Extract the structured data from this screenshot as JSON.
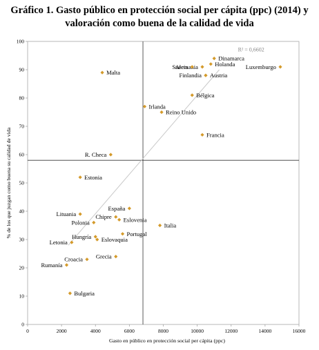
{
  "title_lines": [
    "Gráfico 1. Gasto público en protección social per cápita (ppc) (2014) y",
    "valoración como buena de la calidad de vida"
  ],
  "chart_data": {
    "type": "scatter",
    "xlabel": "Gasto en público en protección social per cápita (ppc)",
    "ylabel": "% de los que juzgan como buena su calidad de vida",
    "xlim": [
      0,
      16000
    ],
    "ylim": [
      0,
      100
    ],
    "xticks": [
      0,
      2000,
      4000,
      6000,
      8000,
      10000,
      12000,
      14000,
      16000
    ],
    "yticks": [
      0,
      10,
      20,
      30,
      40,
      50,
      60,
      70,
      80,
      90,
      100
    ],
    "grid": false,
    "marker_color": "#d49a2a",
    "trend_color": "#c8c8c8",
    "reference_x": 6800,
    "reference_y": 58,
    "trendline": {
      "x": [
        2400,
        11300
      ],
      "y": [
        28,
        90
      ],
      "r2_label": "R² = 0,6602"
    },
    "points": [
      {
        "name": "Alemania",
        "x": 10300,
        "y": 91,
        "label_side": "left"
      },
      {
        "name": "Dinamarca",
        "x": 11000,
        "y": 94,
        "label_side": "right"
      },
      {
        "name": "Suecia",
        "x": 9700,
        "y": 91,
        "label_side": "left"
      },
      {
        "name": "Holanda",
        "x": 10800,
        "y": 92,
        "label_side": "right"
      },
      {
        "name": "Luxemburgo",
        "x": 14900,
        "y": 91,
        "label_side": "left"
      },
      {
        "name": "Finlandia",
        "x": 10500,
        "y": 88,
        "label_side": "left"
      },
      {
        "name": "Austria",
        "x": 10500,
        "y": 88,
        "label_side": "right"
      },
      {
        "name": "Malta",
        "x": 4400,
        "y": 89,
        "label_side": "right"
      },
      {
        "name": "Bélgica",
        "x": 9700,
        "y": 81,
        "label_side": "right"
      },
      {
        "name": "Irlanda",
        "x": 6900,
        "y": 77,
        "label_side": "right"
      },
      {
        "name": "Reino Unido",
        "x": 7900,
        "y": 75,
        "label_side": "right"
      },
      {
        "name": "Francia",
        "x": 10300,
        "y": 67,
        "label_side": "right"
      },
      {
        "name": "R. Checa",
        "x": 4900,
        "y": 60,
        "label_side": "left"
      },
      {
        "name": "Estonia",
        "x": 3100,
        "y": 52,
        "label_side": "right"
      },
      {
        "name": "España",
        "x": 6000,
        "y": 41,
        "label_side": "left"
      },
      {
        "name": "Lituania",
        "x": 3100,
        "y": 39,
        "label_side": "left"
      },
      {
        "name": "Chipre",
        "x": 5200,
        "y": 38,
        "label_side": "left"
      },
      {
        "name": "Eslovenia",
        "x": 5400,
        "y": 37,
        "label_side": "right"
      },
      {
        "name": "Polonia",
        "x": 3900,
        "y": 36,
        "label_side": "left"
      },
      {
        "name": "Italia",
        "x": 7800,
        "y": 35,
        "label_side": "right"
      },
      {
        "name": "Portugal",
        "x": 5600,
        "y": 32,
        "label_side": "right"
      },
      {
        "name": "Hungría",
        "x": 4000,
        "y": 31,
        "label_side": "left"
      },
      {
        "name": "Eslovaquia",
        "x": 4100,
        "y": 30,
        "label_side": "right"
      },
      {
        "name": "Letonia",
        "x": 2600,
        "y": 29,
        "label_side": "left"
      },
      {
        "name": "Grecia",
        "x": 5200,
        "y": 24,
        "label_side": "left"
      },
      {
        "name": "Croacia",
        "x": 3500,
        "y": 23,
        "label_side": "left"
      },
      {
        "name": "Rumanía",
        "x": 2300,
        "y": 21,
        "label_side": "left"
      },
      {
        "name": "Bulgaria",
        "x": 2500,
        "y": 11,
        "label_side": "right"
      }
    ]
  }
}
